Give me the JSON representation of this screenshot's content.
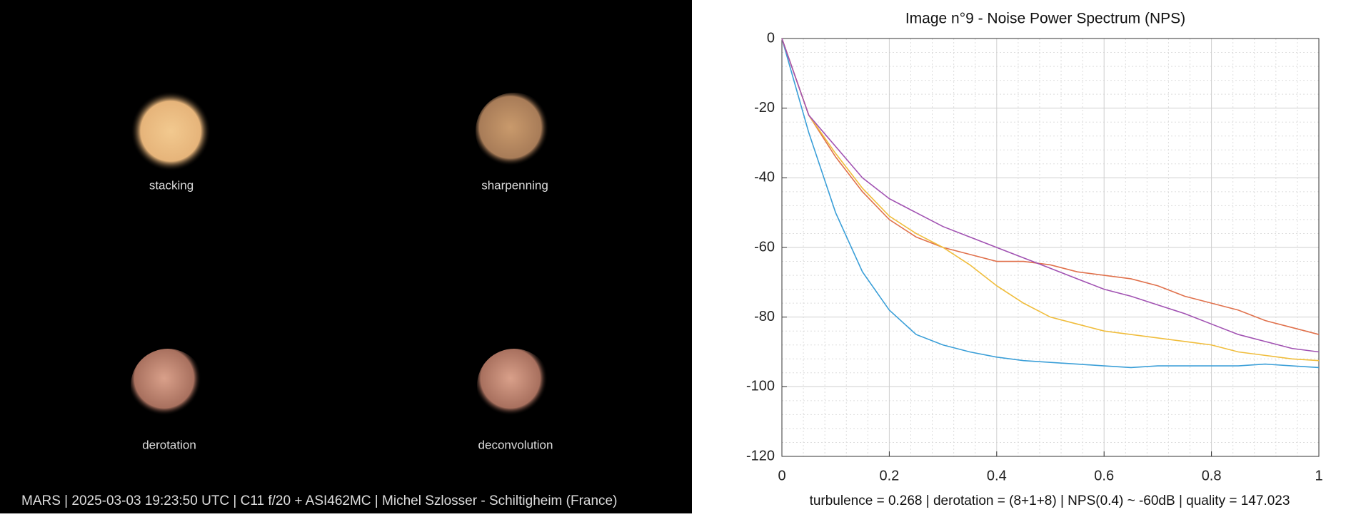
{
  "panels": [
    "stacking",
    "sharpenning",
    "derotation",
    "deconvolution"
  ],
  "caption": "MARS | 2025-03-03  19:23:50 UTC | C11 f/20 + ASI462MC | Michel Szlosser - Schiltigheim (France)",
  "chart_data": {
    "type": "line",
    "title": "Image n°9 - Noise Power Spectrum (NPS)",
    "footer": "turbulence = 0.268 | derotation = (8+1+8) | NPS(0.4) ~ -60dB |  quality = 147.023",
    "x": [
      0,
      0.05,
      0.1,
      0.15,
      0.2,
      0.25,
      0.3,
      0.35,
      0.4,
      0.45,
      0.5,
      0.55,
      0.6,
      0.65,
      0.7,
      0.75,
      0.8,
      0.85,
      0.9,
      0.95,
      1
    ],
    "series": [
      {
        "color": "#3b9fd8",
        "values": [
          0,
          -27,
          -50,
          -67,
          -78,
          -85,
          -88,
          -90,
          -91.5,
          -92.5,
          -93,
          -93.5,
          -94,
          -94.5,
          -94,
          -94,
          -94,
          -94,
          -93.5,
          -94,
          -94.5
        ]
      },
      {
        "color": "#e0714c",
        "values": [
          0,
          -22,
          -34,
          -44,
          -52,
          -57,
          -60,
          -62,
          -64,
          -64,
          -65,
          -67,
          -68,
          -69,
          -71,
          -74,
          -76,
          -78,
          -81,
          -83,
          -85
        ]
      },
      {
        "color": "#f0bd3c",
        "values": [
          0,
          -22,
          -33,
          -43,
          -51,
          -56,
          -60,
          -65,
          -71,
          -76,
          -80,
          -82,
          -84,
          -85,
          -86,
          -87,
          -88,
          -90,
          -91,
          -92,
          -92.5
        ]
      },
      {
        "color": "#a152b2",
        "values": [
          0,
          -22,
          -31,
          -40,
          -46,
          -50,
          -54,
          -57,
          -60,
          -63,
          -66,
          -69,
          -72,
          -74,
          -76.5,
          -79,
          -82,
          -85,
          -87,
          -89,
          -90
        ]
      }
    ],
    "xlim": [
      0,
      1
    ],
    "ylim": [
      -120,
      0
    ],
    "xticks": [
      0,
      0.2,
      0.4,
      0.6,
      0.8,
      1
    ],
    "yticks": [
      0,
      -20,
      -40,
      -60,
      -80,
      -100,
      -120
    ],
    "grid": true,
    "minor_grid": true
  }
}
